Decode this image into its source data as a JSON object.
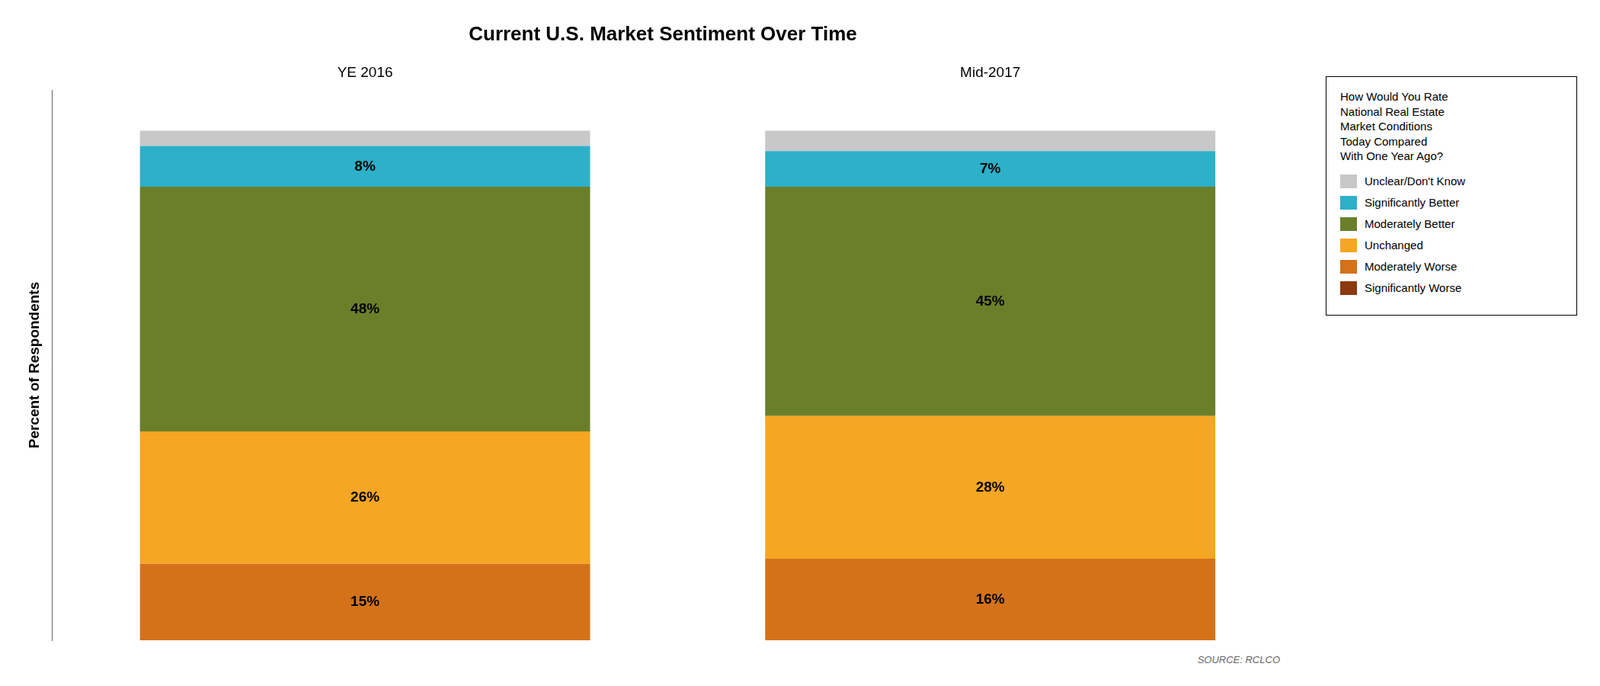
{
  "chart_data": {
    "type": "bar",
    "stacked": true,
    "title": "Current U.S. Market Sentiment Over Time",
    "categories": [
      "YE 2016",
      "Mid-2017"
    ],
    "series": [
      {
        "name": "Significantly Worse",
        "color": "#8B3A0F",
        "values": [
          0,
          0
        ],
        "value_labels": [
          null,
          null
        ]
      },
      {
        "name": "Moderately Worse",
        "color": "#D4721A",
        "values": [
          15,
          16
        ],
        "value_labels": [
          "15%",
          "16%"
        ]
      },
      {
        "name": "Unchanged",
        "color": "#F5A623",
        "values": [
          26,
          28
        ],
        "value_labels": [
          "26%",
          "28%"
        ]
      },
      {
        "name": "Moderately Better",
        "color": "#6B7F2A",
        "values": [
          48,
          45
        ],
        "value_labels": [
          "48%",
          "45%"
        ]
      },
      {
        "name": "Significantly Better",
        "color": "#2DB0C8",
        "values": [
          8,
          7
        ],
        "value_labels": [
          "8%",
          "7%"
        ]
      },
      {
        "name": "Unclear/Don't Know",
        "color": "#C8C8C8",
        "values": [
          3,
          4
        ],
        "value_labels": [
          null,
          null
        ]
      }
    ],
    "ylabel": "Percent of Respondents",
    "ylim": [
      0,
      108
    ],
    "yticks": [],
    "grid": false,
    "tick_labels": "x",
    "data_labels": true,
    "legend": "right",
    "legend_title": "How Would You Rate\nNational Real Estate\nMarket Conditions\nToday Compared\nWith One Year Ago?",
    "annotations": [
      "SOURCE:  RCLCO"
    ]
  }
}
